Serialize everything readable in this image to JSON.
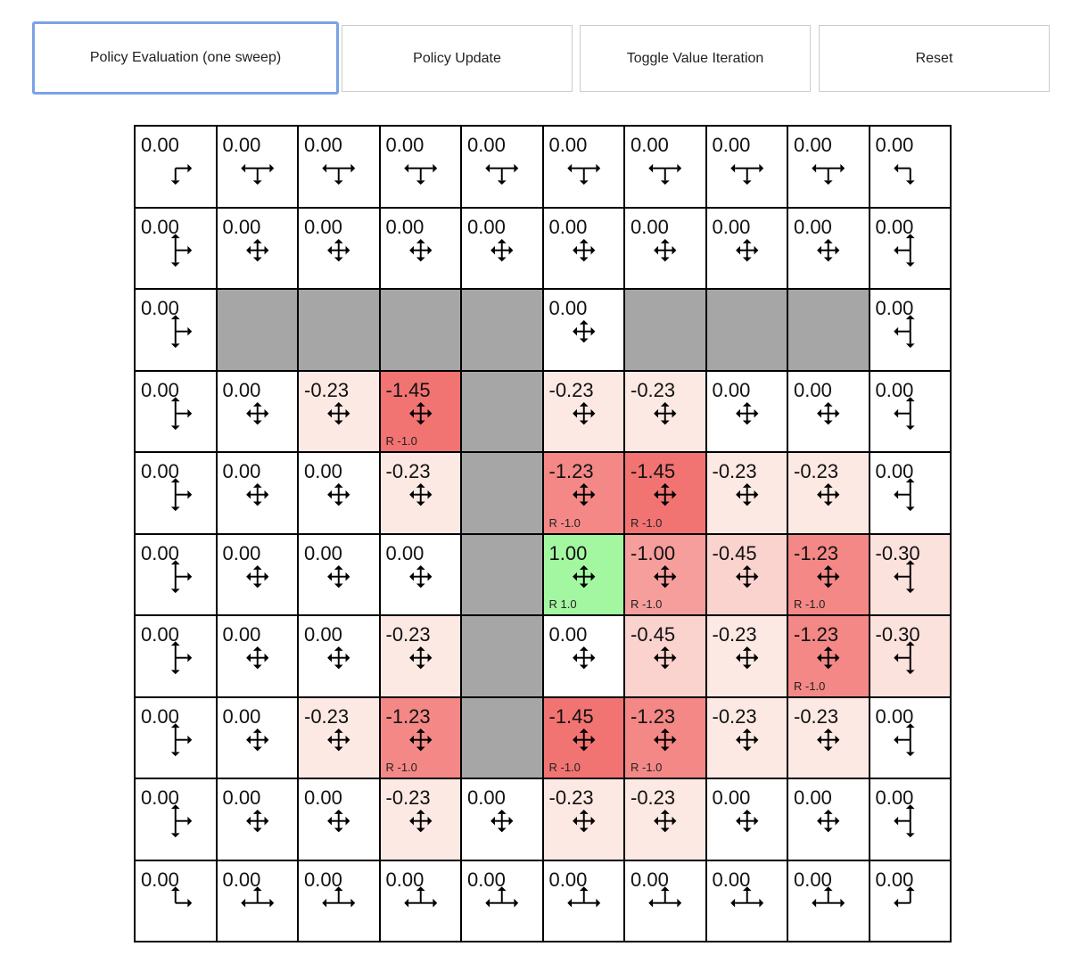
{
  "toolbar": {
    "policy_evaluation": "Policy Evaluation (one sweep)",
    "policy_update": "Policy Update",
    "toggle_value_iteration": "Toggle Value Iteration",
    "reset": "Reset"
  },
  "colors": {
    "wall": "#a6a6a6",
    "goal": "#a3f7a0",
    "neg_max": "#f06464"
  },
  "grid": {
    "values": [
      [
        "0.00",
        "0.00",
        "0.00",
        "0.00",
        "0.00",
        "0.00",
        "0.00",
        "0.00",
        "0.00",
        "0.00"
      ],
      [
        "0.00",
        "0.00",
        "0.00",
        "0.00",
        "0.00",
        "0.00",
        "0.00",
        "0.00",
        "0.00",
        "0.00"
      ],
      [
        "0.00",
        null,
        null,
        null,
        null,
        "0.00",
        null,
        null,
        null,
        "0.00"
      ],
      [
        "0.00",
        "0.00",
        "-0.23",
        "-1.45",
        null,
        "-0.23",
        "-0.23",
        "0.00",
        "0.00",
        "0.00"
      ],
      [
        "0.00",
        "0.00",
        "0.00",
        "-0.23",
        null,
        "-1.23",
        "-1.45",
        "-0.23",
        "-0.23",
        "0.00"
      ],
      [
        "0.00",
        "0.00",
        "0.00",
        "0.00",
        null,
        "1.00",
        "-1.00",
        "-0.45",
        "-1.23",
        "-0.30"
      ],
      [
        "0.00",
        "0.00",
        "0.00",
        "-0.23",
        null,
        "0.00",
        "-0.45",
        "-0.23",
        "-1.23",
        "-0.30"
      ],
      [
        "0.00",
        "0.00",
        "-0.23",
        "-1.23",
        null,
        "-1.45",
        "-1.23",
        "-0.23",
        "-0.23",
        "0.00"
      ],
      [
        "0.00",
        "0.00",
        "0.00",
        "-0.23",
        "0.00",
        "-0.23",
        "-0.23",
        "0.00",
        "0.00",
        "0.00"
      ],
      [
        "0.00",
        "0.00",
        "0.00",
        "0.00",
        "0.00",
        "0.00",
        "0.00",
        "0.00",
        "0.00",
        "0.00"
      ]
    ],
    "rewards": [
      [
        null,
        null,
        null,
        null,
        null,
        null,
        null,
        null,
        null,
        null
      ],
      [
        null,
        null,
        null,
        null,
        null,
        null,
        null,
        null,
        null,
        null
      ],
      [
        null,
        null,
        null,
        null,
        null,
        null,
        null,
        null,
        null,
        null
      ],
      [
        null,
        null,
        null,
        "R -1.0",
        null,
        null,
        null,
        null,
        null,
        null
      ],
      [
        null,
        null,
        null,
        null,
        null,
        "R -1.0",
        "R -1.0",
        null,
        null,
        null
      ],
      [
        null,
        null,
        null,
        null,
        null,
        "R 1.0",
        "R -1.0",
        null,
        "R -1.0",
        null
      ],
      [
        null,
        null,
        null,
        null,
        null,
        null,
        null,
        null,
        "R -1.0",
        null
      ],
      [
        null,
        null,
        null,
        "R -1.0",
        null,
        "R -1.0",
        "R -1.0",
        null,
        null,
        null
      ],
      [
        null,
        null,
        null,
        null,
        null,
        null,
        null,
        null,
        null,
        null
      ],
      [
        null,
        null,
        null,
        null,
        null,
        null,
        null,
        null,
        null,
        null
      ]
    ]
  }
}
